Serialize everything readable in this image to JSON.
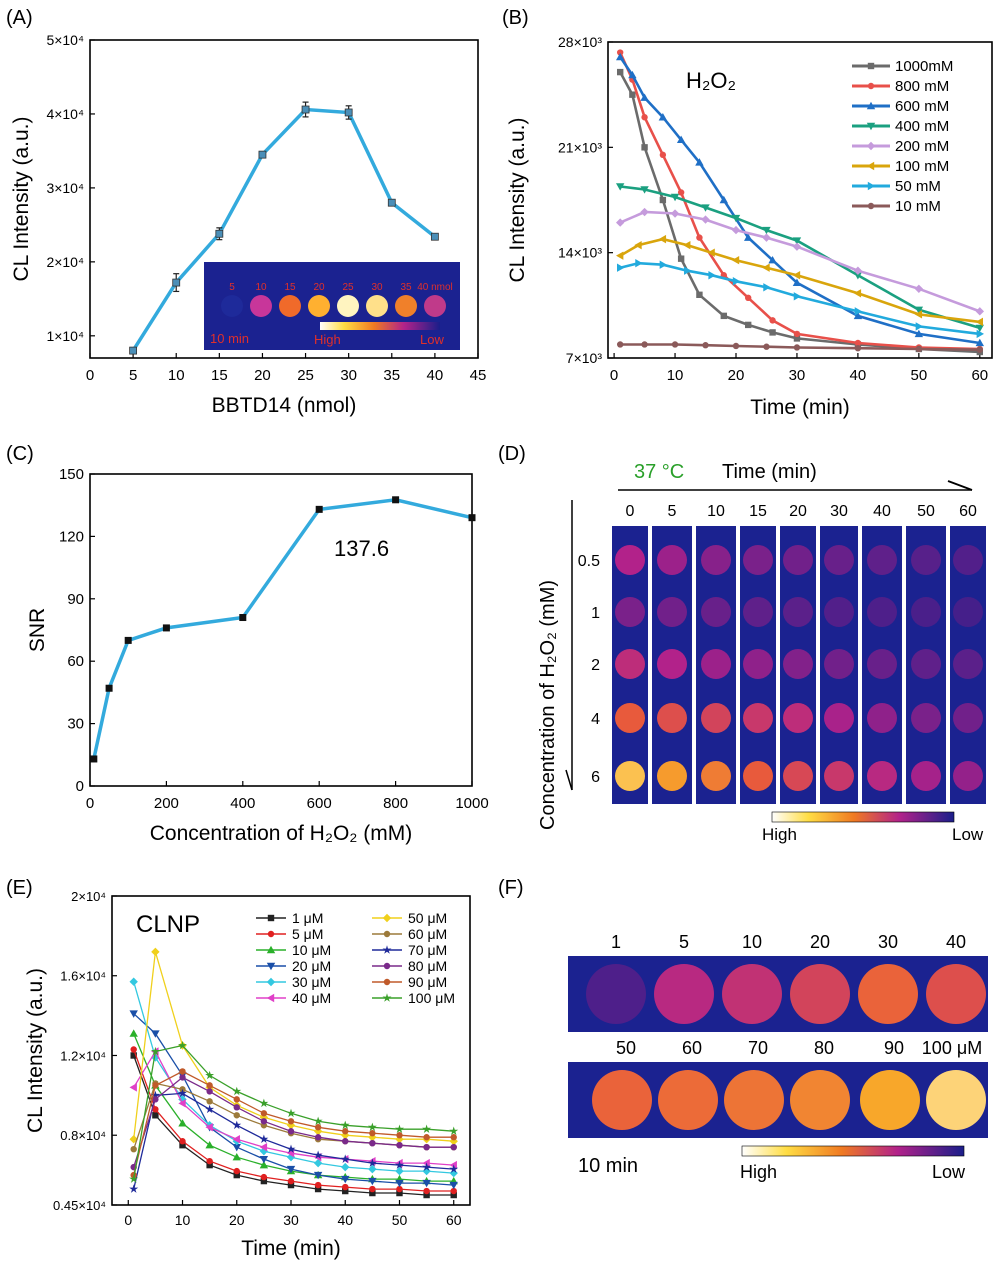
{
  "panel_labels": [
    "(A)",
    "(B)",
    "(C)",
    "(D)",
    "(E)",
    "(F)"
  ],
  "colors": {
    "line_blue": "#33aadd",
    "scale_high": "#ffffff",
    "scale_mid_yellow": "#ffcc22",
    "scale_mid_orange": "#f07a22",
    "scale_mid_magenta": "#b2228a",
    "scale_low": "#1a1e8a",
    "image_bg": "#1b2290",
    "label_red": "#e0302a",
    "label_green": "#2aa02a"
  },
  "chart_data": [
    {
      "panel": "A",
      "type": "line",
      "xlabel": "BBTD14 (nmol)",
      "ylabel": "CL Intensity (a.u.)",
      "xlim": [
        0,
        45
      ],
      "ylim": [
        7000,
        50000
      ],
      "x_ticks": [
        "0",
        "5",
        "10",
        "15",
        "20",
        "25",
        "30",
        "35",
        "40",
        "45"
      ],
      "y_ticks": [
        "1×10⁴",
        "2×10⁴",
        "3×10⁴",
        "4×10⁴",
        "5×10⁴"
      ],
      "series": [
        {
          "x": [
            5,
            10,
            15,
            20,
            25,
            30,
            35,
            40
          ],
          "y": [
            8000,
            17200,
            23800,
            34500,
            40600,
            40200,
            28000,
            23400
          ],
          "err": [
            300,
            1200,
            800,
            400,
            1000,
            900,
            400,
            300
          ]
        }
      ],
      "inset": {
        "amounts": [
          "5",
          "10",
          "15",
          "20",
          "25",
          "30",
          "35",
          "40 nmol"
        ],
        "time": "10 min",
        "high": "High",
        "low": "Low",
        "well_colors": [
          "#1e2a9a",
          "#c8369a",
          "#f06a2a",
          "#ffb030",
          "#fff4c0",
          "#ffe08a",
          "#f0802a",
          "#c03a8a"
        ]
      }
    },
    {
      "panel": "B",
      "type": "line",
      "xlabel": "Time (min)",
      "ylabel": "CL Intensity (a.u.)",
      "annotation": "H₂O₂",
      "xlim": [
        -1,
        62
      ],
      "ylim": [
        7000,
        28000
      ],
      "x_ticks": [
        "0",
        "10",
        "20",
        "30",
        "40",
        "50",
        "60"
      ],
      "y_ticks": [
        "7×10³",
        "14×10³",
        "21×10³",
        "28×10³"
      ],
      "series": [
        {
          "name": "1000mM",
          "color": "#6b6b6b",
          "x": [
            1,
            3,
            5,
            8,
            11,
            14,
            18,
            22,
            26,
            30,
            40,
            50,
            60
          ],
          "y": [
            26000,
            24500,
            21000,
            17500,
            13600,
            11200,
            9800,
            9200,
            8700,
            8300,
            7900,
            7600,
            7400
          ]
        },
        {
          "name": "800 mM",
          "color": "#e8504a",
          "x": [
            1,
            3,
            5,
            8,
            11,
            14,
            18,
            22,
            26,
            30,
            40,
            50,
            60
          ],
          "y": [
            27300,
            25500,
            23000,
            20500,
            18000,
            15000,
            12500,
            11000,
            9500,
            8600,
            8000,
            7700,
            7600
          ]
        },
        {
          "name": "600 mM",
          "color": "#1f6fc6",
          "x": [
            1,
            3,
            5,
            8,
            11,
            14,
            18,
            22,
            26,
            30,
            40,
            50,
            60
          ],
          "y": [
            27000,
            25800,
            24300,
            23000,
            21500,
            20000,
            17500,
            15000,
            13500,
            12000,
            9800,
            8600,
            8000
          ]
        },
        {
          "name": "400 mM",
          "color": "#1ba080",
          "x": [
            1,
            5,
            10,
            15,
            20,
            25,
            30,
            40,
            50,
            60
          ],
          "y": [
            18400,
            18200,
            17700,
            17000,
            16300,
            15500,
            14800,
            12500,
            10200,
            9000
          ]
        },
        {
          "name": "200 mM",
          "color": "#c59bdc",
          "x": [
            1,
            5,
            10,
            15,
            20,
            25,
            30,
            40,
            50,
            60
          ],
          "y": [
            16000,
            16700,
            16600,
            16200,
            15500,
            15000,
            14400,
            12800,
            11600,
            10100
          ]
        },
        {
          "name": "100 mM",
          "color": "#d9a50c",
          "x": [
            1,
            4,
            8,
            12,
            16,
            20,
            25,
            30,
            40,
            50,
            60
          ],
          "y": [
            13800,
            14500,
            14900,
            14500,
            14000,
            13500,
            13000,
            12500,
            11300,
            9900,
            9400
          ]
        },
        {
          "name": "50 mM",
          "color": "#22aadd",
          "x": [
            1,
            4,
            8,
            12,
            16,
            20,
            25,
            30,
            40,
            50,
            60
          ],
          "y": [
            13000,
            13300,
            13200,
            12800,
            12500,
            12100,
            11700,
            11100,
            10100,
            9100,
            8600
          ]
        },
        {
          "name": "10 mM",
          "color": "#8b5a5a",
          "x": [
            1,
            5,
            10,
            15,
            20,
            25,
            30,
            40,
            50,
            60
          ],
          "y": [
            7900,
            7900,
            7900,
            7850,
            7800,
            7750,
            7700,
            7650,
            7600,
            7550
          ]
        }
      ]
    },
    {
      "panel": "C",
      "type": "line",
      "xlabel": "Concentration of  H₂O₂ (mM)",
      "ylabel": "SNR",
      "annotation": "137.6",
      "xlim": [
        0,
        1000
      ],
      "ylim": [
        0,
        150
      ],
      "x_ticks": [
        "0",
        "200",
        "400",
        "600",
        "800",
        "1000"
      ],
      "y_ticks": [
        "0",
        "30",
        "60",
        "90",
        "120",
        "150"
      ],
      "series": [
        {
          "x": [
            10,
            50,
            100,
            200,
            400,
            600,
            800,
            1000
          ],
          "y": [
            13,
            47,
            70,
            76,
            81,
            133,
            137.6,
            129
          ]
        }
      ]
    },
    {
      "panel": "E",
      "type": "line",
      "xlabel": "Time (min)",
      "ylabel": "CL Intensity (a.u.)",
      "annotation": "CLNP",
      "xlim": [
        -3,
        63
      ],
      "ylim": [
        4500,
        20000
      ],
      "x_ticks": [
        "0",
        "10",
        "20",
        "30",
        "40",
        "50",
        "60"
      ],
      "y_ticks": [
        "0.45×10⁴",
        "0.8×10⁴",
        "1.2×10⁴",
        "1.6×10⁴",
        "2×10⁴"
      ],
      "series": [
        {
          "name": "1 μM",
          "color": "#222222",
          "x": [
            1,
            5,
            10,
            15,
            20,
            25,
            30,
            35,
            40,
            45,
            50,
            55,
            60
          ],
          "y": [
            12000,
            9000,
            7500,
            6500,
            6000,
            5700,
            5500,
            5300,
            5200,
            5100,
            5100,
            5000,
            5000
          ]
        },
        {
          "name": "5 μM",
          "color": "#e02020",
          "x": [
            1,
            5,
            10,
            15,
            20,
            25,
            30,
            35,
            40,
            45,
            50,
            55,
            60
          ],
          "y": [
            12300,
            9300,
            7700,
            6700,
            6200,
            5900,
            5700,
            5500,
            5400,
            5300,
            5300,
            5200,
            5200
          ]
        },
        {
          "name": "10 μM",
          "color": "#2ab02a",
          "x": [
            1,
            5,
            10,
            15,
            20,
            25,
            30,
            35,
            40,
            45,
            50,
            55,
            60
          ],
          "y": [
            13100,
            10500,
            8600,
            7500,
            6900,
            6500,
            6200,
            6000,
            5900,
            5800,
            5800,
            5700,
            5700
          ]
        },
        {
          "name": "20 μM",
          "color": "#1a4fa8",
          "x": [
            1,
            5,
            10,
            15,
            20,
            25,
            30,
            35,
            40,
            45,
            50,
            55,
            60
          ],
          "y": [
            14100,
            13100,
            11000,
            8400,
            7400,
            6800,
            6300,
            6000,
            5800,
            5700,
            5600,
            5600,
            5500
          ]
        },
        {
          "name": "30 μM",
          "color": "#33c8e0",
          "x": [
            1,
            5,
            10,
            15,
            20,
            25,
            30,
            35,
            40,
            45,
            50,
            55,
            60
          ],
          "y": [
            15700,
            11900,
            9800,
            8500,
            7700,
            7200,
            6900,
            6600,
            6400,
            6300,
            6200,
            6200,
            6100
          ]
        },
        {
          "name": "40 μM",
          "color": "#e040c8",
          "x": [
            1,
            5,
            10,
            15,
            20,
            25,
            30,
            35,
            40,
            45,
            50,
            55,
            60
          ],
          "y": [
            10400,
            12200,
            9600,
            8400,
            7800,
            7400,
            7100,
            6900,
            6800,
            6700,
            6600,
            6600,
            6500
          ]
        },
        {
          "name": "50 μM",
          "color": "#f0d01c",
          "x": [
            1,
            5,
            10,
            15,
            20,
            25,
            30,
            35,
            40,
            45,
            50,
            55,
            60
          ],
          "y": [
            7800,
            17200,
            12500,
            10400,
            9500,
            8900,
            8500,
            8200,
            8000,
            7900,
            7800,
            7800,
            7700
          ]
        },
        {
          "name": "60 μM",
          "color": "#9c7a3a",
          "x": [
            1,
            5,
            10,
            15,
            20,
            25,
            30,
            35,
            40,
            45,
            50,
            55,
            60
          ],
          "y": [
            7300,
            10600,
            10300,
            9700,
            9000,
            8500,
            8100,
            7800,
            7700,
            7600,
            7500,
            7400,
            7400
          ]
        },
        {
          "name": "70 μM",
          "color": "#1f2a9a",
          "x": [
            1,
            5,
            10,
            15,
            20,
            25,
            30,
            35,
            40,
            45,
            50,
            55,
            60
          ],
          "y": [
            5300,
            10000,
            10100,
            9300,
            8500,
            7800,
            7300,
            7000,
            6800,
            6600,
            6500,
            6400,
            6300
          ]
        },
        {
          "name": "80 μM",
          "color": "#7a2a8a",
          "x": [
            1,
            5,
            10,
            15,
            20,
            25,
            30,
            35,
            40,
            45,
            50,
            55,
            60
          ],
          "y": [
            6400,
            9800,
            10900,
            10200,
            9400,
            8700,
            8200,
            7900,
            7700,
            7600,
            7500,
            7400,
            7400
          ]
        },
        {
          "name": "90 μM",
          "color": "#c05a2a",
          "x": [
            1,
            5,
            10,
            15,
            20,
            25,
            30,
            35,
            40,
            45,
            50,
            55,
            60
          ],
          "y": [
            6000,
            10500,
            11200,
            10500,
            9800,
            9100,
            8700,
            8400,
            8200,
            8100,
            8000,
            7900,
            7900
          ]
        },
        {
          "name": "100 μM",
          "color": "#3aa02a",
          "x": [
            1,
            5,
            10,
            15,
            20,
            25,
            30,
            35,
            40,
            45,
            50,
            55,
            60
          ],
          "y": [
            5800,
            12200,
            12500,
            11000,
            10200,
            9600,
            9100,
            8700,
            8500,
            8400,
            8300,
            8300,
            8200
          ]
        }
      ]
    }
  ],
  "panel_D": {
    "temperature": "37 °C",
    "time_title": "Time (min)",
    "times": [
      "0",
      "5",
      "10",
      "15",
      "20",
      "30",
      "40",
      "50",
      "60"
    ],
    "row_label": "Concentration of  H₂O₂ (mM)",
    "concentrations": [
      "0.5",
      "1",
      "2",
      "4",
      "6"
    ],
    "high": "High",
    "low": "Low",
    "intensity_rows": [
      [
        0.35,
        0.3,
        0.25,
        0.22,
        0.2,
        0.18,
        0.16,
        0.14,
        0.13
      ],
      [
        0.22,
        0.2,
        0.18,
        0.16,
        0.15,
        0.13,
        0.12,
        0.11,
        0.1
      ],
      [
        0.4,
        0.35,
        0.3,
        0.27,
        0.24,
        0.2,
        0.18,
        0.16,
        0.15
      ],
      [
        0.6,
        0.55,
        0.5,
        0.45,
        0.4,
        0.33,
        0.27,
        0.22,
        0.2
      ],
      [
        0.85,
        0.75,
        0.68,
        0.6,
        0.52,
        0.45,
        0.38,
        0.32,
        0.28
      ]
    ]
  },
  "panel_F": {
    "row1_labels": [
      "1",
      "5",
      "10",
      "20",
      "30",
      "40"
    ],
    "row2_labels": [
      "50",
      "60",
      "70",
      "80",
      "90",
      "100 μM"
    ],
    "time": "10 min",
    "high": "High",
    "low": "Low",
    "row1_intensity": [
      0.12,
      0.38,
      0.42,
      0.5,
      0.62,
      0.55
    ],
    "row2_intensity": [
      0.62,
      0.64,
      0.66,
      0.7,
      0.78,
      0.9
    ]
  }
}
